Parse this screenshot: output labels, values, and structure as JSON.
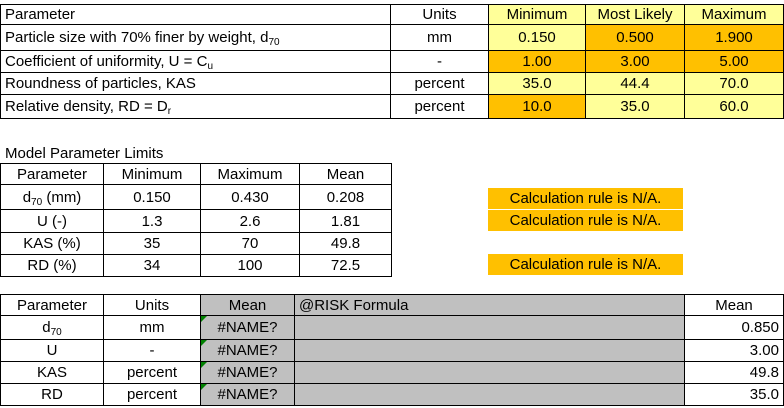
{
  "input_table": {
    "headers": [
      "Parameter",
      "Units",
      "Minimum",
      "Most Likely",
      "Maximum"
    ],
    "rows": [
      {
        "parameter": "Particle size with 70% finer by weight, d",
        "sub": "70",
        "units": "mm",
        "min": "0.150",
        "likely": "0.500",
        "max": "1.900"
      },
      {
        "parameter": "Coefficient of uniformity, U = C",
        "sub": "u",
        "units": "-",
        "min": "1.00",
        "likely": "3.00",
        "max": "5.00"
      },
      {
        "parameter": "Roundness of particles, KAS",
        "sub": "",
        "units": "percent",
        "min": "35.0",
        "likely": "44.4",
        "max": "70.0"
      },
      {
        "parameter": "Relative density, RD = D",
        "sub": "r",
        "units": "percent",
        "min": "10.0",
        "likely": "35.0",
        "max": "60.0"
      }
    ]
  },
  "limits": {
    "caption": "Model Parameter Limits",
    "headers": [
      "Parameter",
      "Minimum",
      "Maximum",
      "Mean"
    ],
    "rows": [
      {
        "parameter": "d",
        "sub": "70",
        "suffix": " (mm)",
        "min": "0.150",
        "max": "0.430",
        "mean": "0.208"
      },
      {
        "parameter": "U (-)",
        "sub": "",
        "suffix": "",
        "min": "1.3",
        "max": "2.6",
        "mean": "1.81"
      },
      {
        "parameter": "KAS (%)",
        "sub": "",
        "suffix": "",
        "min": "35",
        "max": "70",
        "mean": "49.8"
      },
      {
        "parameter": "RD (%)",
        "sub": "",
        "suffix": "",
        "min": "34",
        "max": "100",
        "mean": "72.5"
      }
    ]
  },
  "notices": [
    "Calculation rule is N/A.",
    "Calculation rule is N/A.",
    "Calculation rule is N/A."
  ],
  "formula_table": {
    "headers": [
      "Parameter",
      "Units",
      "Mean",
      "@RISK Formula",
      "Mean"
    ],
    "rows": [
      {
        "parameter": "d",
        "sub": "70",
        "units": "mm",
        "mean": "#NAME?",
        "formula": "",
        "mean2": "0.850"
      },
      {
        "parameter": "U",
        "sub": "",
        "units": "-",
        "mean": "#NAME?",
        "formula": "",
        "mean2": "3.00"
      },
      {
        "parameter": "KAS",
        "sub": "",
        "units": "percent",
        "mean": "#NAME?",
        "formula": "",
        "mean2": "49.8"
      },
      {
        "parameter": "RD",
        "sub": "",
        "units": "percent",
        "mean": "#NAME?",
        "formula": "",
        "mean2": "35.0"
      }
    ]
  },
  "colors": {
    "light_yellow": "#ffff99",
    "orange": "#ffc000",
    "gray": "#c0c0c0",
    "error_flag": "#008000"
  }
}
